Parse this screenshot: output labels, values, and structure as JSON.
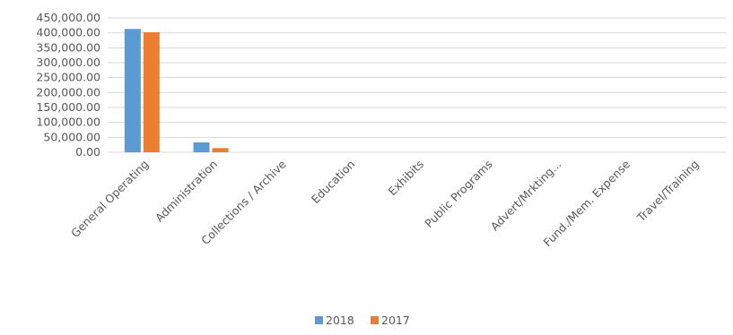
{
  "chart_data": {
    "type": "bar",
    "title": "",
    "xlabel": "",
    "ylabel": "",
    "categories": [
      "General Operating",
      "Administration",
      "Collections / Archive",
      "Education",
      "Exhibits",
      "Public Programs",
      "Advert/Mrkting...",
      "Fund./Mem. Expense",
      "Travel/Training"
    ],
    "series": [
      {
        "name": "2018",
        "color": "#5b9bd5",
        "values": [
          413000,
          33000,
          0,
          0,
          0,
          0,
          0,
          0,
          0
        ]
      },
      {
        "name": "2017",
        "color": "#ed7d31",
        "values": [
          402000,
          14000,
          0,
          0,
          0,
          0,
          0,
          0,
          0
        ]
      }
    ],
    "ylim": [
      0,
      450000
    ],
    "y_ticks": [
      "0.00",
      "50,000.00",
      "100,000.00",
      "150,000.00",
      "200,000.00",
      "250,000.00",
      "300,000.00",
      "350,000.00",
      "400,000.00",
      "450,000.00"
    ],
    "grid": true,
    "legend_position": "bottom"
  }
}
